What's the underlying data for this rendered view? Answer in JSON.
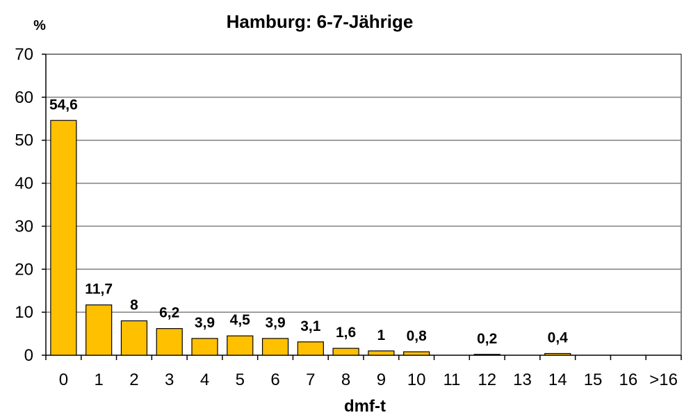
{
  "chart_data": {
    "type": "bar",
    "title": "Hamburg: 6-7-Jährige",
    "ylabel": "%",
    "xlabel": "dmf-t",
    "ylim": [
      0,
      70
    ],
    "yticks": [
      0,
      10,
      20,
      30,
      40,
      50,
      60,
      70
    ],
    "grid": true,
    "legend": "none",
    "bar_color": "#FFC000",
    "bar_border_color": "#000000",
    "categories": [
      "0",
      "1",
      "2",
      "3",
      "4",
      "5",
      "6",
      "7",
      "8",
      "9",
      "10",
      "11",
      "12",
      "13",
      "14",
      "15",
      "16",
      ">16"
    ],
    "values": [
      54.6,
      11.7,
      8,
      6.2,
      3.9,
      4.5,
      3.9,
      3.1,
      1.6,
      1,
      0.8,
      null,
      0.2,
      null,
      0.4,
      null,
      null,
      null
    ],
    "data_labels": [
      "54,6",
      "11,7",
      "8",
      "6,2",
      "3,9",
      "4,5",
      "3,9",
      "3,1",
      "1,6",
      "1",
      "0,8",
      "",
      "0,2",
      "",
      "0,4",
      "",
      "",
      ""
    ]
  }
}
